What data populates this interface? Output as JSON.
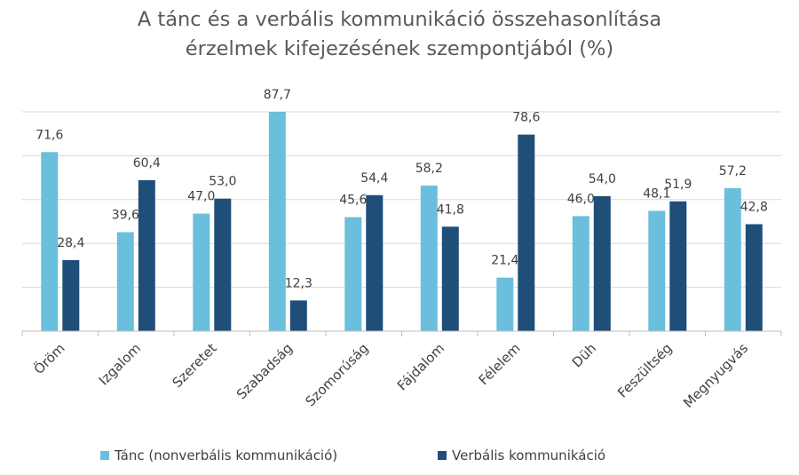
{
  "chart_data": {
    "type": "bar",
    "title": [
      "A tánc és a verbális kommunikáció összehasonlítása",
      "érzelmek kifejezésének szempontjából (%)"
    ],
    "categories": [
      "Öröm",
      "Izgalom",
      "Szeretet",
      "Szabadság",
      "Szomorúság",
      "Fájdalom",
      "Félelem",
      "Düh",
      "Feszültség",
      "Megnyugvás"
    ],
    "series": [
      {
        "name": "Tánc (nonverbális kommunikáció)",
        "color": "#6ABFDC",
        "values": [
          71.6,
          39.6,
          47.0,
          87.7,
          45.6,
          58.2,
          21.4,
          46.0,
          48.1,
          57.2
        ],
        "labels": [
          "71,6",
          "39,6",
          "47,0",
          "87,7",
          "45,6",
          "58,2",
          "21,4",
          "46,0",
          "48,1",
          "57,2"
        ]
      },
      {
        "name": "Verbális kommunikáció",
        "color": "#1F4E79",
        "values": [
          28.4,
          60.4,
          53.0,
          12.3,
          54.4,
          41.8,
          78.6,
          54.0,
          51.9,
          42.8
        ],
        "labels": [
          "28,4",
          "60,4",
          "53,0",
          "12,3",
          "54,4",
          "41,8",
          "78,6",
          "54,0",
          "51,9",
          "42,8"
        ]
      }
    ],
    "ylim": [
      0,
      87.7
    ],
    "grid": true,
    "legend": "bottom"
  }
}
